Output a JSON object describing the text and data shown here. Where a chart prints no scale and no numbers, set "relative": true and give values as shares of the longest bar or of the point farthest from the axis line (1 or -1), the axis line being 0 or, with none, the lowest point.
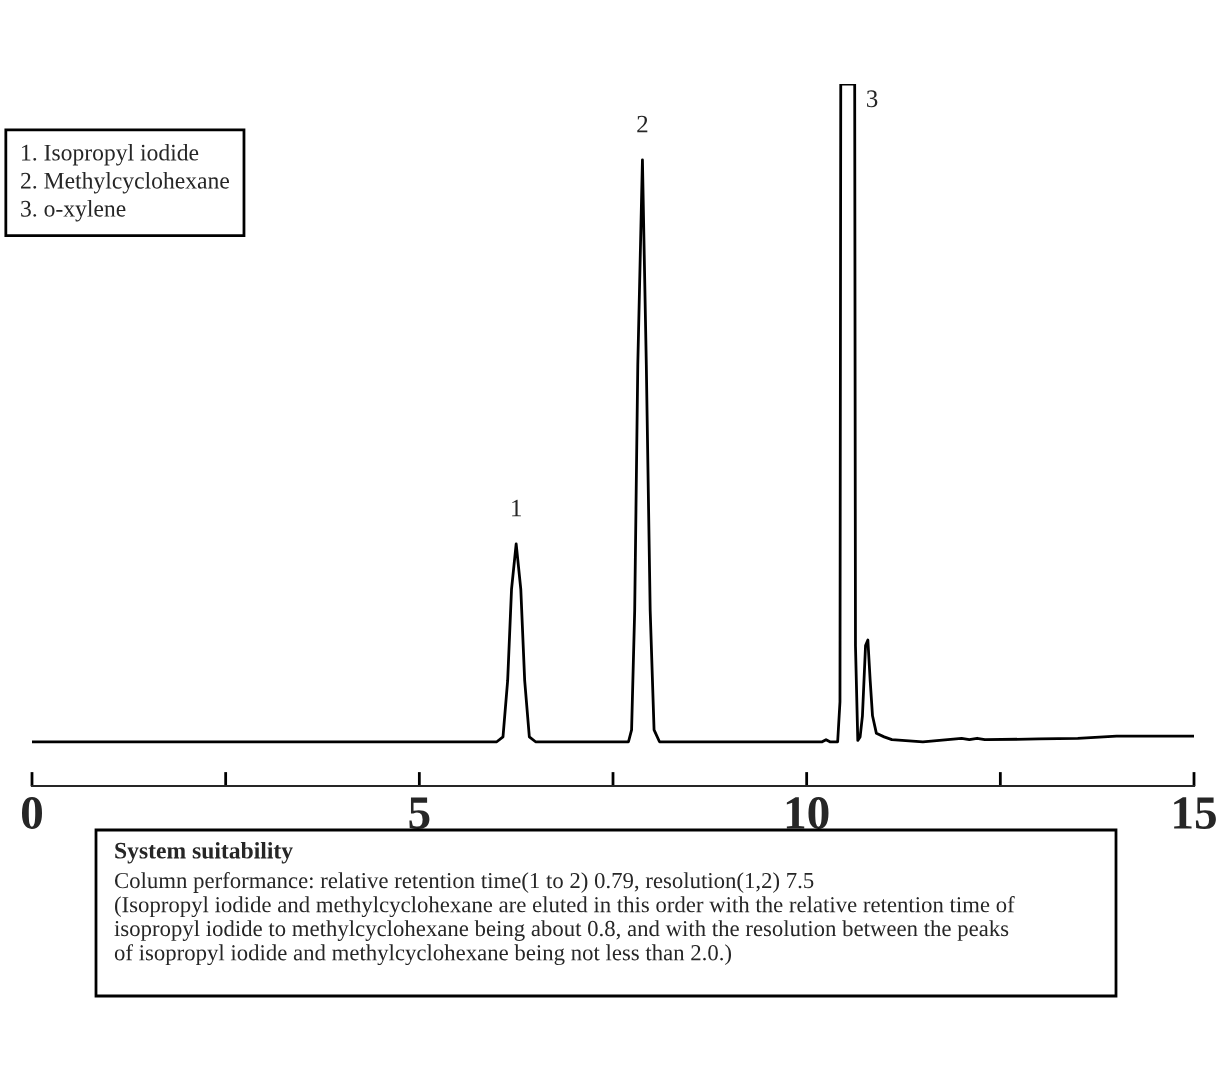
{
  "chart_data": {
    "type": "line",
    "relative": true,
    "x": [
      0,
      6.0,
      6.08,
      6.14,
      6.19,
      6.25,
      6.31,
      6.36,
      6.42,
      6.5,
      7.7,
      7.74,
      7.78,
      7.82,
      7.88,
      7.93,
      7.98,
      8.03,
      8.1,
      10.2,
      10.25,
      10.3,
      10.4,
      10.43,
      10.44,
      10.62,
      10.63,
      10.66,
      10.69,
      10.72,
      10.76,
      10.79,
      10.82,
      10.85,
      10.9,
      11.0,
      11.1,
      11.5,
      12.0,
      12.1,
      12.2,
      12.3,
      13.0,
      13.5,
      14.0,
      15
    ],
    "series": [
      {
        "color": "#000000",
        "values": [
          0.063,
          0.063,
          0.07,
          0.15,
          0.28,
          0.345,
          0.28,
          0.15,
          0.07,
          0.063,
          0.063,
          0.08,
          0.25,
          0.6,
          0.892,
          0.6,
          0.25,
          0.08,
          0.063,
          0.063,
          0.066,
          0.063,
          0.063,
          0.12,
          1,
          1,
          0.2,
          0.065,
          0.07,
          0.1,
          0.2,
          0.208,
          0.15,
          0.1,
          0.075,
          0.07,
          0.066,
          0.063,
          0.068,
          0.066,
          0.068,
          0.066,
          0.067,
          0.068,
          0.071,
          0.071
        ]
      }
    ],
    "xlim": [
      0,
      15
    ],
    "xticks": [
      0,
      {
        "value": 2.5,
        "label": null
      },
      5,
      {
        "value": 7.5,
        "label": null
      },
      10,
      {
        "value": 12.5,
        "label": null
      },
      15
    ],
    "tick_labels": "x",
    "grid": false,
    "marker": "none",
    "line_style": "solid",
    "annotations": [
      {
        "text": "1",
        "x": 6.25,
        "y": 0.345
      },
      {
        "text": "2",
        "x": 7.88,
        "y": 0.892
      },
      {
        "text": "3",
        "x": 10.62,
        "y": 1
      },
      "1. Isopropyl iodide\n2. Methylcyclohexane\n3. o-xylene",
      "System suitability",
      "Column performance: relative retention time(1 to 2) 0.79, resolution(1,2) 7.5\n(Isopropyl iodide and methylcyclohexane are eluted in this order with the relative retention time of\nisopropyl iodide to methylcyclohexane being about 0.8, and with the resolution between the peaks\nof isopropyl iodide and methylcyclohexane being not less than 2.0.)"
    ]
  }
}
